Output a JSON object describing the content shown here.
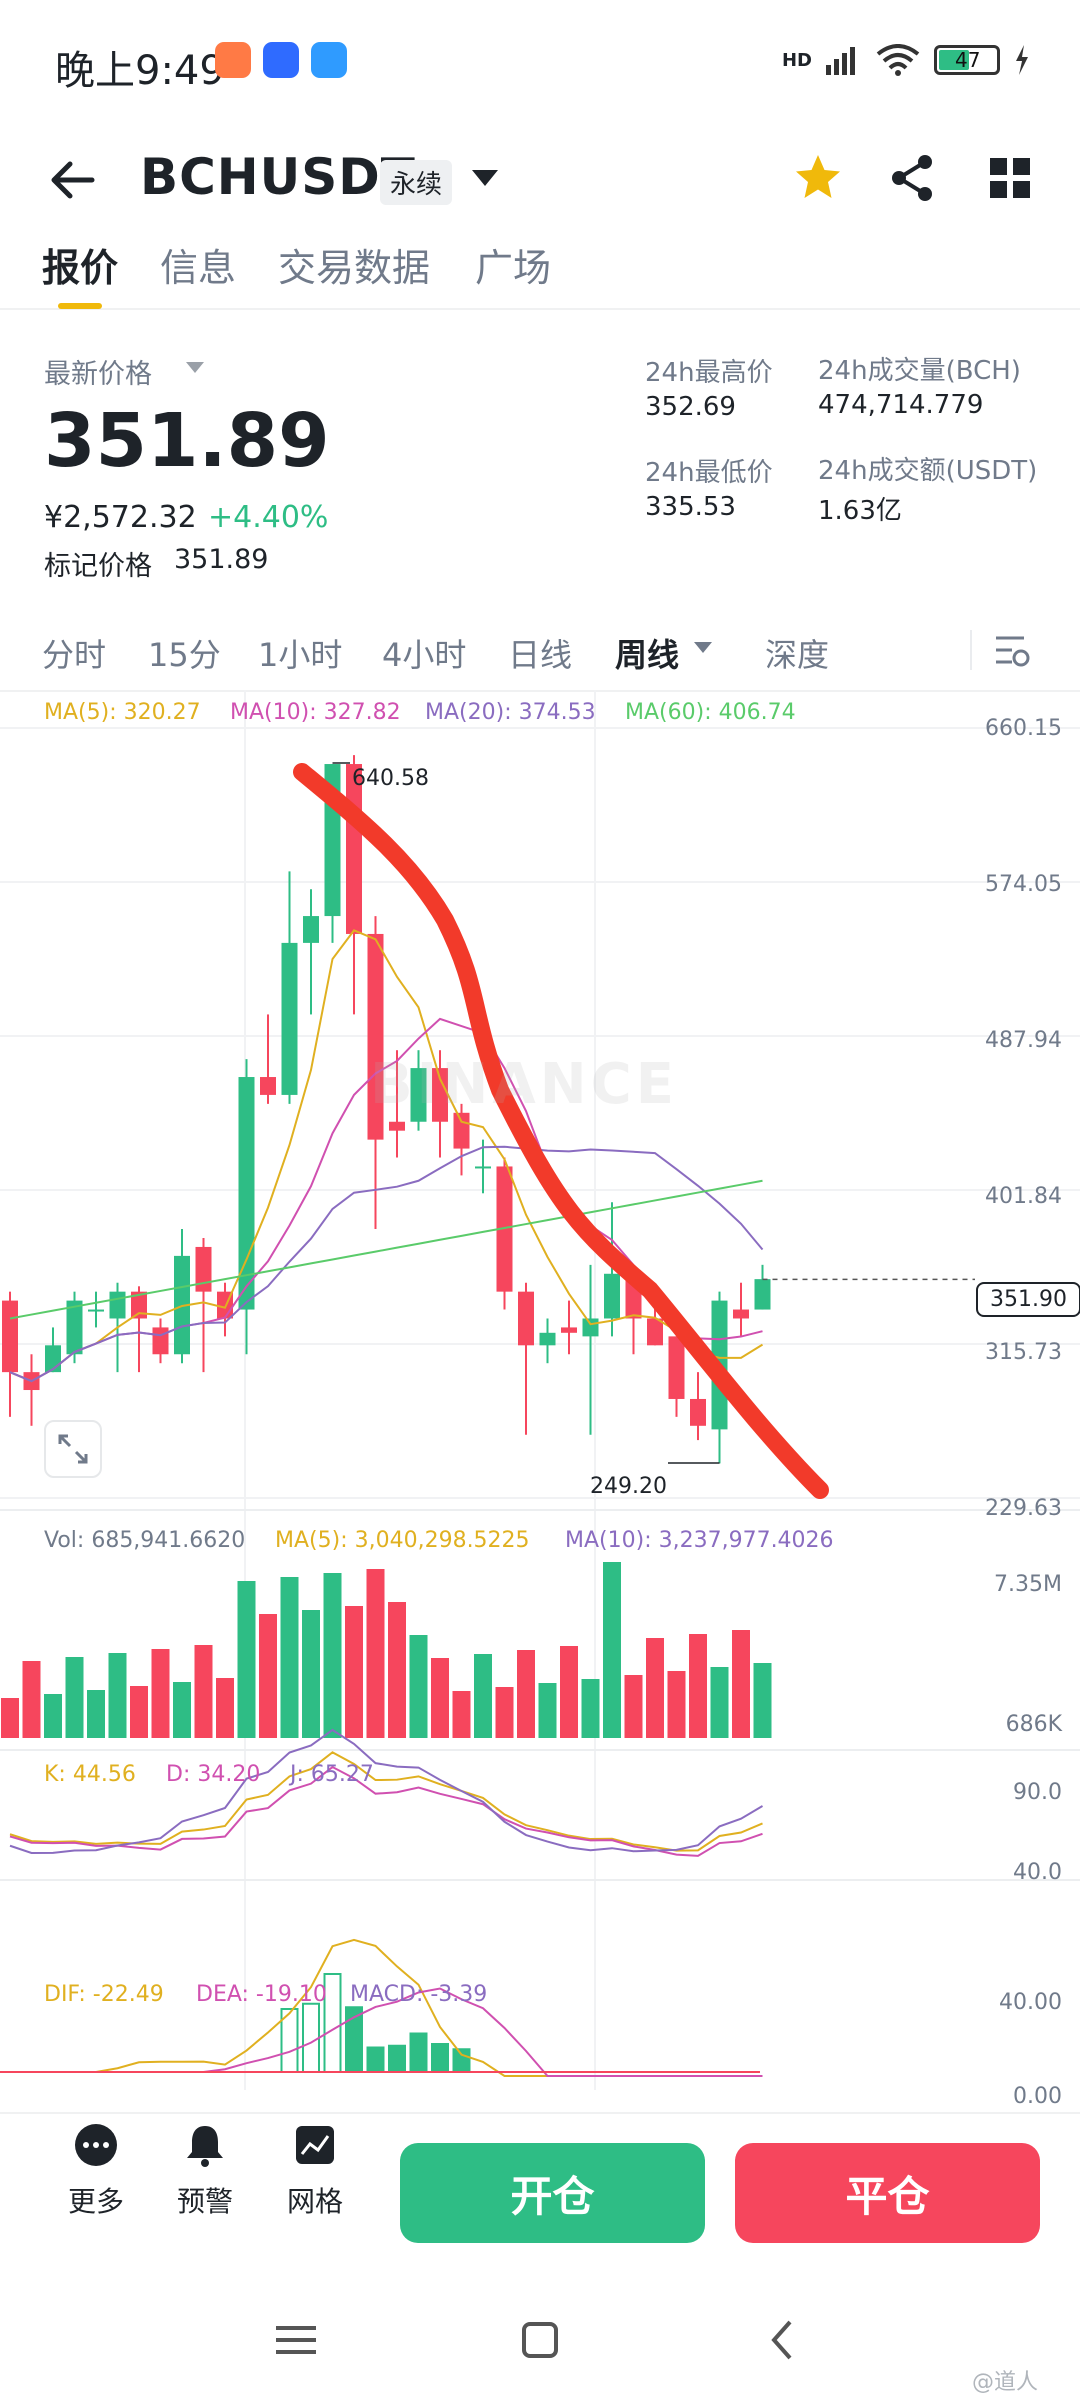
{
  "status_bar": {
    "time": "晚上9:49",
    "network": "HD",
    "battery": "47"
  },
  "header": {
    "symbol": "BCHUSDT",
    "contract_type": "永续"
  },
  "tabs": [
    "报价",
    "信息",
    "交易数据",
    "广场"
  ],
  "price": {
    "label": "最新价格",
    "last": "351.89",
    "cny": "¥2,572.32",
    "change": "+4.40%",
    "mark_label": "标记价格",
    "mark": "351.89"
  },
  "stats": {
    "high_label": "24h最高价",
    "high": "352.69",
    "low_label": "24h最低价",
    "low": "335.53",
    "vol_label": "24h成交量(BCH)",
    "vol": "474,714.779",
    "amt_label": "24h成交额(USDT)",
    "amt": "1.63亿"
  },
  "intervals": [
    "分时",
    "15分",
    "1小时",
    "4小时",
    "日线",
    "周线",
    "深度"
  ],
  "ma_legend": {
    "ma5": "MA(5): 320.27",
    "ma10": "MA(10): 327.82",
    "ma20": "MA(20): 374.53",
    "ma60": "MA(60): 406.74"
  },
  "price_axis": [
    "660.15",
    "574.05",
    "487.94",
    "401.84",
    "315.73",
    "229.63"
  ],
  "chart_annotations": {
    "high": "640.58",
    "low": "249.20",
    "current": "351.90",
    "watermark": "BINANCE"
  },
  "vol_legend": {
    "vol": "Vol: 685,941.6620",
    "ma5": "MA(5): 3,040,298.5225",
    "ma10": "MA(10): 3,237,977.4026"
  },
  "vol_axis": [
    "7.35M",
    "686K"
  ],
  "kdj_legend": {
    "k": "K: 44.56",
    "d": "D: 34.20",
    "j": "J: 65.27"
  },
  "kdj_axis": [
    "90.0",
    "40.0"
  ],
  "macd_legend": {
    "dif": "DIF: -22.49",
    "dea": "DEA: -19.10",
    "macd": "MACD: -3.39"
  },
  "macd_axis": [
    "40.00",
    "0.00"
  ],
  "actions": {
    "more": "更多",
    "alert": "预警",
    "grid": "网格",
    "open": "开仓",
    "close": "平仓"
  },
  "watermark_corner": "@道人",
  "colors": {
    "up": "#2ebd85",
    "down": "#f6465d",
    "accent": "#f0b90b",
    "ma5": "#e0b020",
    "ma10": "#d050b0",
    "ma20": "#8a6cc0",
    "ma60": "#5acb6a"
  },
  "chart_data": {
    "type": "candlestick",
    "ylim": [
      229.63,
      660.15
    ],
    "candles": [
      {
        "o": 340,
        "c": 300,
        "h": 345,
        "l": 275
      },
      {
        "o": 300,
        "c": 290,
        "h": 310,
        "l": 270
      },
      {
        "o": 300,
        "c": 315,
        "h": 325,
        "l": 300
      },
      {
        "o": 310,
        "c": 340,
        "h": 345,
        "l": 305
      },
      {
        "o": 335,
        "c": 335,
        "h": 345,
        "l": 325
      },
      {
        "o": 330,
        "c": 345,
        "h": 350,
        "l": 300
      },
      {
        "o": 345,
        "c": 330,
        "h": 348,
        "l": 300
      },
      {
        "o": 325,
        "c": 310,
        "h": 330,
        "l": 305
      },
      {
        "o": 310,
        "c": 365,
        "h": 380,
        "l": 305
      },
      {
        "o": 370,
        "c": 345,
        "h": 375,
        "l": 300
      },
      {
        "o": 345,
        "c": 330,
        "h": 350,
        "l": 320
      },
      {
        "o": 335,
        "c": 465,
        "h": 475,
        "l": 310
      },
      {
        "o": 465,
        "c": 455,
        "h": 500,
        "l": 450
      },
      {
        "o": 455,
        "c": 540,
        "h": 580,
        "l": 450
      },
      {
        "o": 540,
        "c": 555,
        "h": 570,
        "l": 500
      },
      {
        "o": 555,
        "c": 640,
        "h": 640,
        "l": 540
      },
      {
        "o": 640,
        "c": 545,
        "h": 645,
        "l": 500
      },
      {
        "o": 545,
        "c": 430,
        "h": 555,
        "l": 380
      },
      {
        "o": 440,
        "c": 435,
        "h": 480,
        "l": 420
      },
      {
        "o": 440,
        "c": 470,
        "h": 480,
        "l": 435
      },
      {
        "o": 470,
        "c": 440,
        "h": 480,
        "l": 420
      },
      {
        "o": 445,
        "c": 425,
        "h": 450,
        "l": 410
      },
      {
        "o": 415,
        "c": 415,
        "h": 430,
        "l": 400
      },
      {
        "o": 415,
        "c": 345,
        "h": 420,
        "l": 335
      },
      {
        "o": 345,
        "c": 315,
        "h": 350,
        "l": 265
      },
      {
        "o": 315,
        "c": 322,
        "h": 330,
        "l": 305
      },
      {
        "o": 325,
        "c": 322,
        "h": 340,
        "l": 310
      },
      {
        "o": 320,
        "c": 330,
        "h": 360,
        "l": 265
      },
      {
        "o": 330,
        "c": 355,
        "h": 395,
        "l": 320
      },
      {
        "o": 355,
        "c": 330,
        "h": 360,
        "l": 310
      },
      {
        "o": 330,
        "c": 315,
        "h": 340,
        "l": 315
      },
      {
        "o": 320,
        "c": 285,
        "h": 320,
        "l": 275
      },
      {
        "o": 285,
        "c": 270,
        "h": 300,
        "l": 262
      },
      {
        "o": 268,
        "c": 340,
        "h": 345,
        "l": 249
      },
      {
        "o": 335,
        "c": 330,
        "h": 350,
        "l": 320
      },
      {
        "o": 335,
        "c": 352,
        "h": 360,
        "l": 335
      }
    ],
    "volume_max": 7.35
  }
}
